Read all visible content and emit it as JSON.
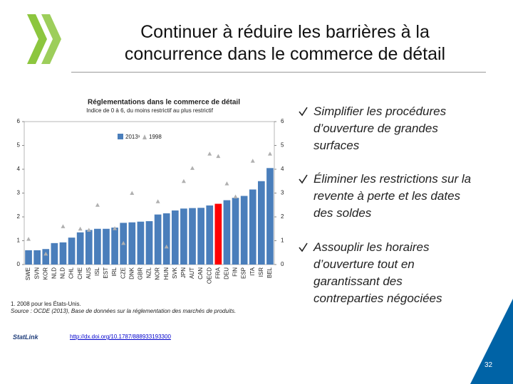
{
  "slide": {
    "title_line1": "Continuer à réduire les barrières à la",
    "title_line2": "concurrence dans le commerce de détail",
    "bullets": [
      [
        "Simplifier les procédures",
        "d’ouverture de grandes",
        "surfaces"
      ],
      [
        "Éliminer les restrictions sur la",
        "revente à perte et les dates",
        "des soldes"
      ],
      [
        "Assouplir les horaires",
        "d’ouverture tout en",
        "garantissant des",
        "contreparties négociées"
      ]
    ],
    "footnote": "1. 2008 pour les États-Unis.",
    "source": "Source : OCDE (2013), Base de données sur la réglementation des marchés de produits.",
    "logo_text": "StatLink",
    "link": "http://dx.doi.org/10.1787/888933193300",
    "page_number": "32"
  },
  "chart_data": {
    "type": "bar",
    "title": "Réglementations dans le commerce de détail",
    "subtitle": "Indice de 0 à 6, du moins restrictif au plus restrictif",
    "categories": [
      "SWE",
      "SVN",
      "KOR",
      "NLD",
      "NLD",
      "CHL",
      "CHE",
      "AUS",
      "ISL",
      "EST",
      "IRL",
      "CZE",
      "DNK",
      "GBR",
      "NZL",
      "NOR",
      "HUN",
      "SVK",
      "JPN",
      "AUT",
      "CAN",
      "OECD",
      "FRA",
      "DEU",
      "FIN",
      "ESP",
      "ITA",
      "ISR",
      "BEL"
    ],
    "series": [
      {
        "name": "2013¹",
        "color": "#4a7ebb",
        "highlight_color": "#ff0000",
        "highlight_index": 22,
        "values": [
          0.6,
          0.6,
          0.65,
          0.9,
          0.93,
          1.13,
          1.35,
          1.45,
          1.5,
          1.5,
          1.55,
          1.75,
          1.77,
          1.8,
          1.82,
          2.1,
          2.15,
          2.27,
          2.35,
          2.37,
          2.38,
          2.48,
          2.55,
          2.7,
          2.8,
          2.88,
          3.15,
          3.5,
          4.05
        ]
      },
      {
        "name": "1998",
        "color": "#b0b0b0",
        "values": [
          1.07,
          null,
          0.45,
          null,
          1.6,
          null,
          1.5,
          1.45,
          2.5,
          null,
          1.52,
          0.9,
          3.0,
          null,
          null,
          2.65,
          0.75,
          null,
          3.5,
          4.05,
          null,
          4.65,
          4.55,
          3.4,
          2.85,
          null,
          4.35,
          null,
          4.65
        ]
      }
    ],
    "ylim": [
      0,
      6
    ],
    "yticks": [
      0,
      1,
      2,
      3,
      4,
      5,
      6
    ]
  }
}
